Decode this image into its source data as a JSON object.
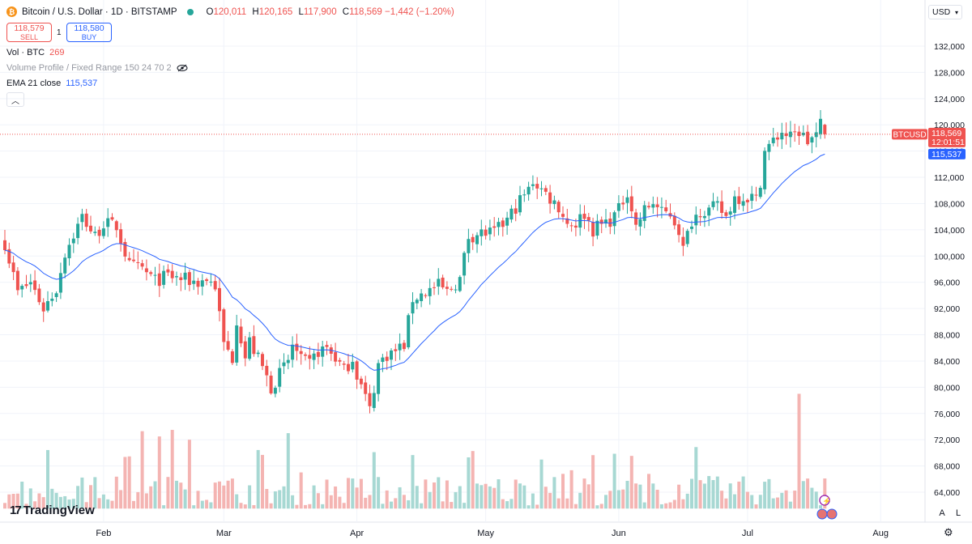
{
  "symbol": {
    "logo": "₿",
    "title": "Bitcoin / U.S. Dollar · 1D · BITSTAMP"
  },
  "ohlc": {
    "o_label": "O",
    "o": "120,011",
    "h_label": "H",
    "h": "120,165",
    "l_label": "L",
    "l": "117,900",
    "c_label": "C",
    "c": "118,569",
    "change": "−1,442 (−1.20%)"
  },
  "trade": {
    "sell_price": "118,579",
    "sell_label": "SELL",
    "spread": "1",
    "buy_price": "118,580",
    "buy_label": "BUY"
  },
  "indicators": {
    "vol_label": "Vol · BTC",
    "vol_value": "269",
    "vp_label": "Volume Profile / Fixed Range 150 24 70 2",
    "ema_label": "EMA 21 close",
    "ema_value": "115,537"
  },
  "currency": "USD",
  "axis_buttons": {
    "auto": "A",
    "log": "L"
  },
  "branding": "TradingView",
  "price_labels": {
    "symbol_tag": "BTCUSD",
    "last": "118,569",
    "countdown": "12:01:51",
    "ema": "115,537"
  },
  "colors": {
    "up": "#26a69a",
    "down": "#ef5350",
    "ema": "#2962ff",
    "vol_up": "#a7d8d3",
    "vol_down": "#f4b4b2"
  },
  "chart_data": {
    "type": "candlestick",
    "title": "Bitcoin / U.S. Dollar · 1D · BITSTAMP",
    "y_ticks": [
      "64,000",
      "68,000",
      "72,000",
      "76,000",
      "80,000",
      "84,000",
      "88,000",
      "92,000",
      "96,000",
      "100,000",
      "104,000",
      "108,000",
      "112,000",
      "116,000",
      "120,000",
      "124,000",
      "128,000",
      "132,000"
    ],
    "x_ticks": [
      "Feb",
      "Mar",
      "Apr",
      "May",
      "Jun",
      "Jul",
      "Aug"
    ],
    "ylim": [
      61000,
      134000
    ],
    "x_start": "2025-01-09",
    "anchors": [
      [
        0,
        102000
      ],
      [
        3,
        94500
      ],
      [
        6,
        96000
      ],
      [
        9,
        92000
      ],
      [
        12,
        95000
      ],
      [
        14,
        100500
      ],
      [
        18,
        106000
      ],
      [
        21,
        103000
      ],
      [
        23,
        105000
      ],
      [
        26,
        104500
      ],
      [
        29,
        98500
      ],
      [
        32,
        98000
      ],
      [
        35,
        96200
      ],
      [
        38,
        97000
      ],
      [
        41,
        96500
      ],
      [
        45,
        96000
      ],
      [
        47,
        96500
      ],
      [
        49,
        95500
      ],
      [
        51,
        86500
      ],
      [
        53,
        84500
      ],
      [
        54,
        90500
      ],
      [
        56,
        84500
      ],
      [
        57,
        87000
      ],
      [
        60,
        83000
      ],
      [
        62,
        80000
      ],
      [
        64,
        82000
      ],
      [
        66,
        84000
      ],
      [
        67,
        86500
      ],
      [
        69,
        84000
      ],
      [
        71,
        83500
      ],
      [
        73,
        85500
      ],
      [
        75,
        86000
      ],
      [
        77,
        84500
      ],
      [
        79,
        82500
      ],
      [
        81,
        84500
      ],
      [
        82,
        82000
      ],
      [
        84,
        78500
      ],
      [
        85,
        76500
      ],
      [
        87,
        83500
      ],
      [
        89,
        85000
      ],
      [
        91,
        85500
      ],
      [
        93,
        86500
      ],
      [
        95,
        93500
      ],
      [
        98,
        94500
      ],
      [
        101,
        95500
      ],
      [
        103,
        94500
      ],
      [
        106,
        96500
      ],
      [
        108,
        103000
      ],
      [
        111,
        103500
      ],
      [
        114,
        103500
      ],
      [
        117,
        105500
      ],
      [
        120,
        108500
      ],
      [
        122,
        110000
      ],
      [
        123,
        111500
      ],
      [
        126,
        109500
      ],
      [
        129,
        107500
      ],
      [
        131,
        105000
      ],
      [
        133,
        105000
      ],
      [
        135,
        106500
      ],
      [
        137,
        104000
      ],
      [
        138,
        104500
      ],
      [
        141,
        105500
      ],
      [
        143,
        107000
      ],
      [
        145,
        110000
      ],
      [
        147,
        104500
      ],
      [
        149,
        107000
      ],
      [
        151,
        108200
      ],
      [
        153,
        106500
      ],
      [
        155,
        106500
      ],
      [
        157,
        104000
      ],
      [
        158,
        101000
      ],
      [
        160,
        105500
      ],
      [
        162,
        107000
      ],
      [
        164,
        107000
      ],
      [
        166,
        107500
      ],
      [
        168,
        106000
      ],
      [
        170,
        109000
      ],
      [
        172,
        109000
      ],
      [
        174,
        109000
      ],
      [
        175,
        108500
      ],
      [
        176,
        111500
      ],
      [
        177,
        116000
      ],
      [
        179,
        117500
      ],
      [
        181,
        119000
      ],
      [
        183,
        118000
      ],
      [
        185,
        119000
      ],
      [
        187,
        117500
      ],
      [
        189,
        118500
      ],
      [
        190,
        120000
      ],
      [
        191,
        118569
      ]
    ],
    "ema_end": 115537,
    "volume_spikes": {
      "185": 79000,
      "66": 73000,
      "32": 73300,
      "36": 72500,
      "39": 73500,
      "43": 72000
    }
  }
}
